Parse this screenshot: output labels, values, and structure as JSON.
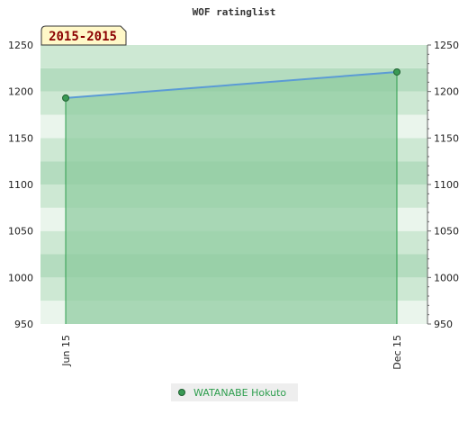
{
  "chart_data": {
    "type": "area",
    "title": "WOF ratinglist",
    "range_label": "2015-2015",
    "xlabel": "",
    "ylabel": "",
    "ylim": [
      950,
      1250
    ],
    "y_ticks": [
      950,
      1000,
      1050,
      1100,
      1150,
      1200,
      1250
    ],
    "categories": [
      "Jun 15",
      "Dec 15"
    ],
    "series": [
      {
        "name": "WATANABE Hokuto",
        "values": [
          1193,
          1221
        ]
      }
    ],
    "grid": "alternating horizontal bands",
    "legend_position": "bottom-center",
    "colors": {
      "fill": "#8fcc9f",
      "line": "#5b9bd5",
      "marker": "#3a9a55",
      "marker_stroke": "#1f5f30",
      "drop_line": "#2e9e4e",
      "band_light": "#eaf5ec",
      "band_mid": "#cde8d3",
      "band_dark": "#b4dcbf",
      "badge_bg": "#fff8c8",
      "badge_text": "#8b0000",
      "legend_bg": "#eeeeee",
      "legend_text": "#2e9e4e"
    }
  }
}
